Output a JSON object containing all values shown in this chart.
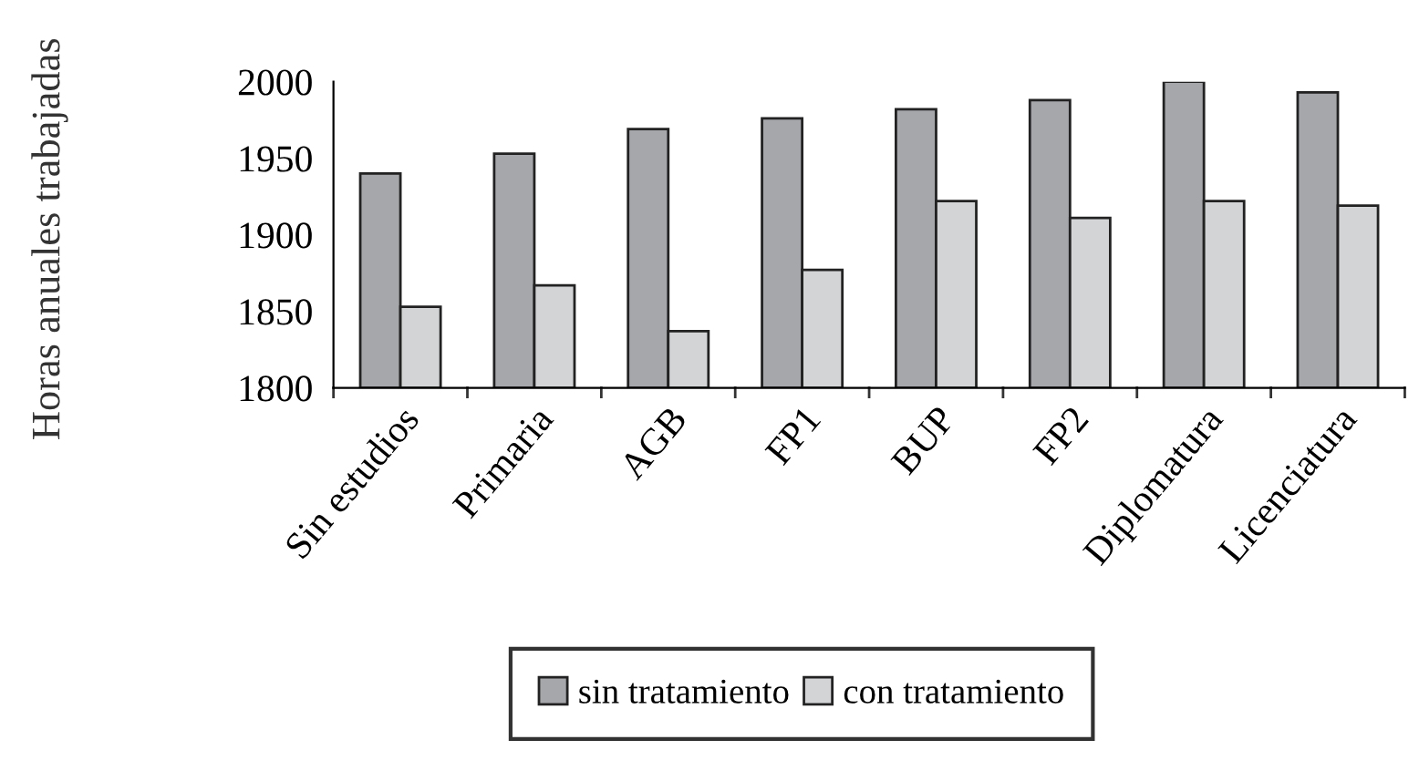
{
  "chart_data": {
    "type": "bar",
    "ylabel": "Horas anuales trabajadas",
    "categories": [
      "Sin estudios",
      "Primaria",
      "AGB",
      "FP1",
      "BUP",
      "FP2",
      "Diplomatura",
      "Licenciatura"
    ],
    "series": [
      {
        "name": "sin tratamiento",
        "color": "#a6a7ab",
        "values": [
          1940,
          1953,
          1969,
          1976,
          1982,
          1988,
          2000,
          1993
        ]
      },
      {
        "name": "con tratamiento",
        "color": "#d3d4d6",
        "values": [
          1853,
          1867,
          1837,
          1877,
          1922,
          1911,
          1922,
          1919
        ]
      }
    ],
    "ylim": [
      1800,
      2000
    ],
    "yticks": [
      1800,
      1850,
      1900,
      1950,
      2000
    ],
    "grid": false,
    "legend": "bottom"
  }
}
